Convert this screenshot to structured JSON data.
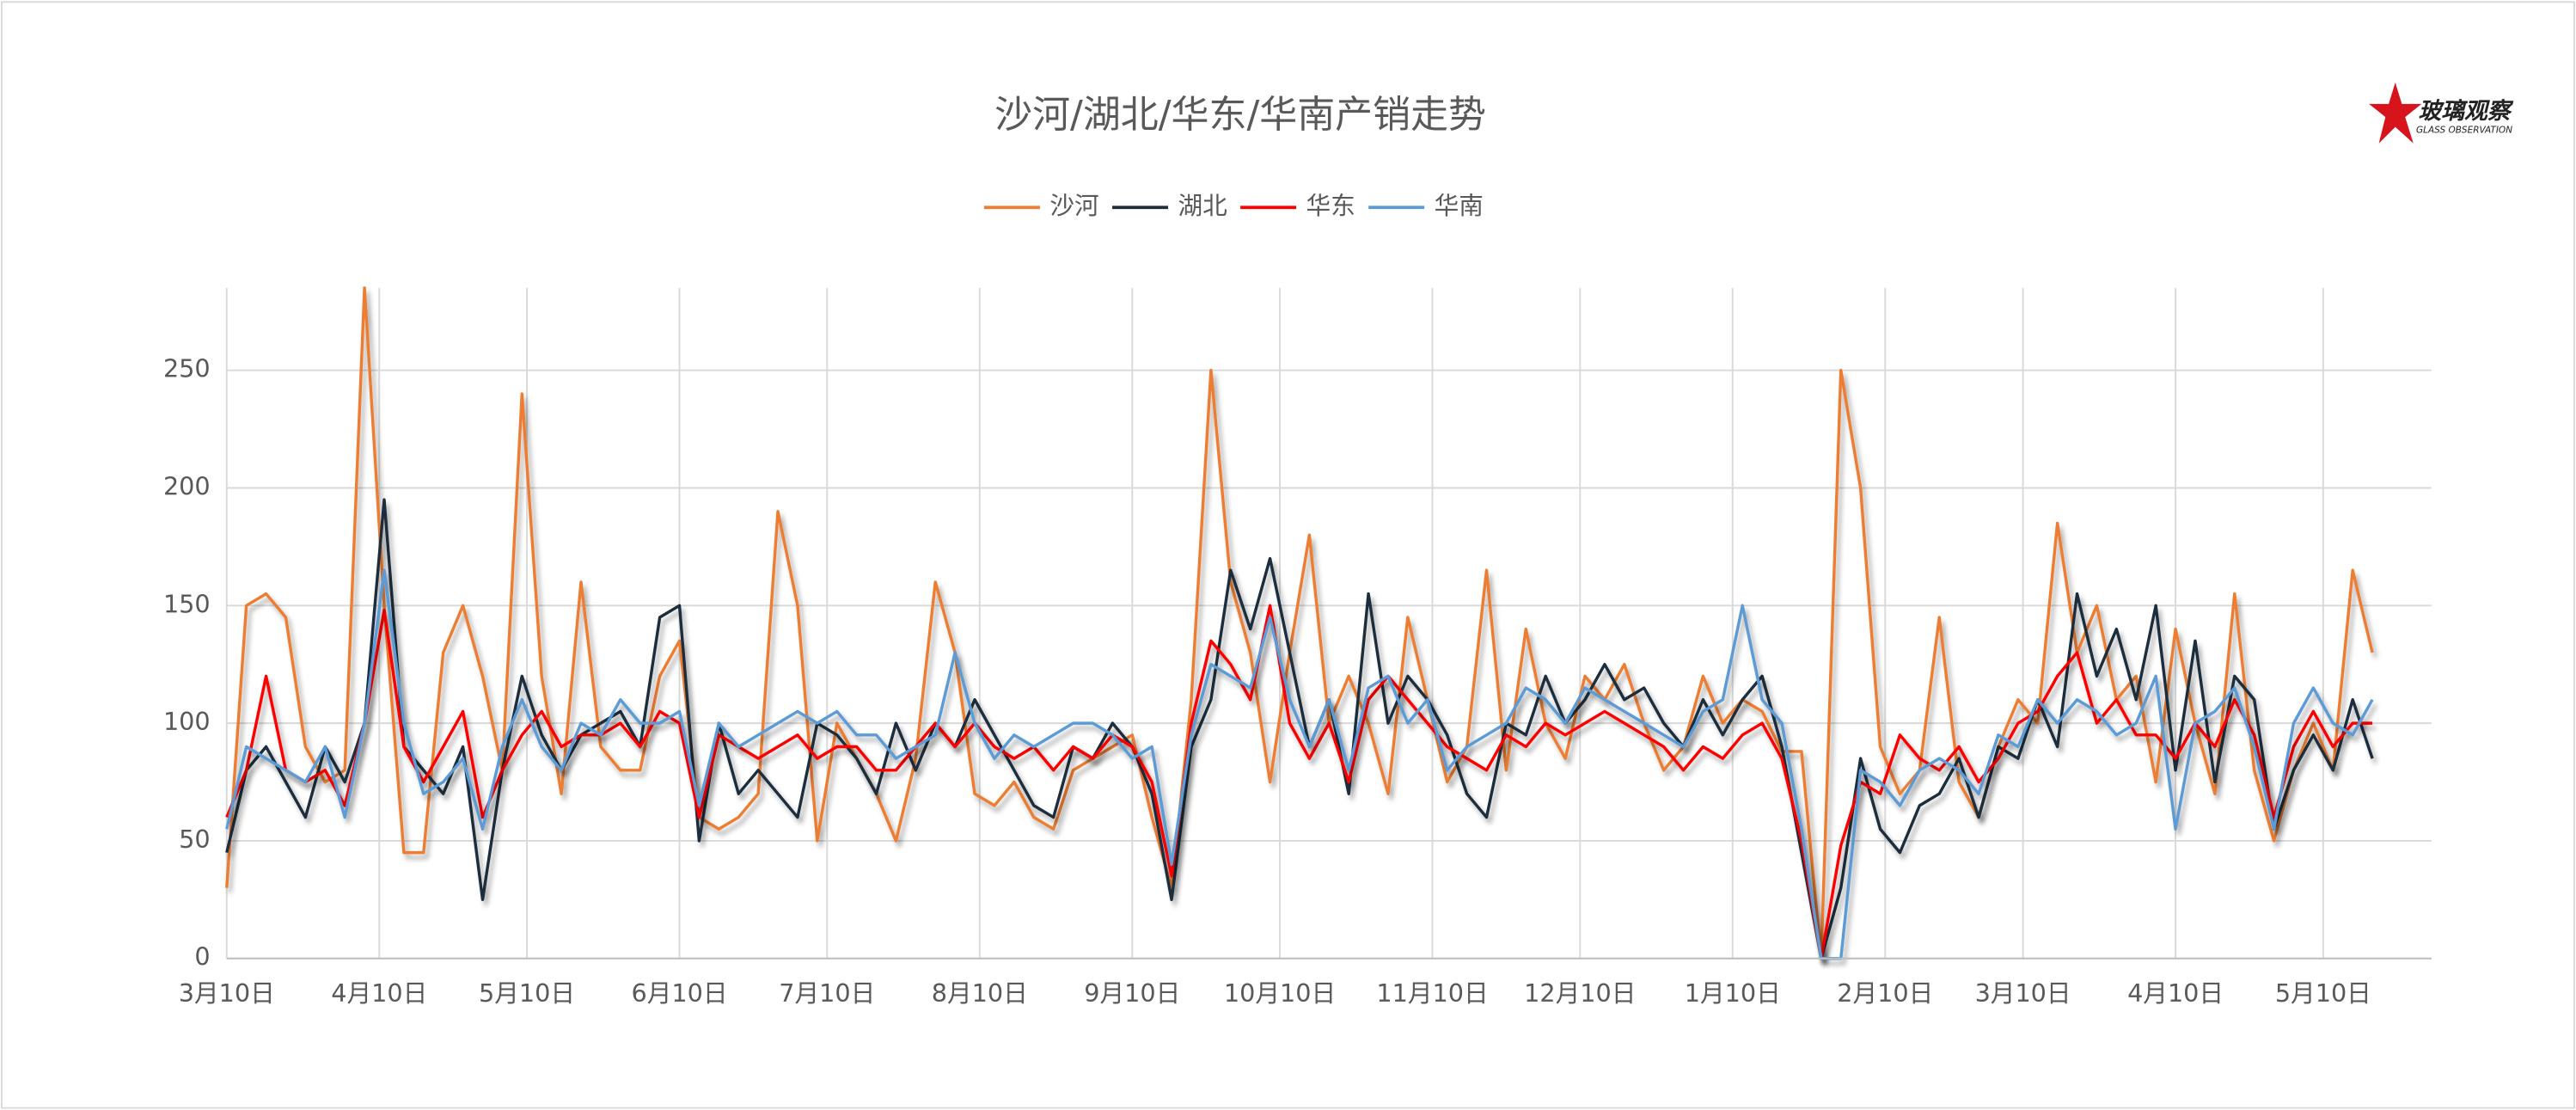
{
  "chart_data": {
    "type": "line",
    "title": "沙河/湖北/华东/华南产销走势",
    "x": [
      0,
      4,
      8,
      12,
      16,
      20,
      24,
      28,
      32,
      36,
      40,
      44,
      48,
      52,
      56,
      60,
      64,
      68,
      72,
      76,
      80,
      84,
      88,
      92,
      96,
      100,
      104,
      108,
      112,
      116,
      120,
      124,
      128,
      132,
      136,
      140,
      144,
      148,
      152,
      156,
      160,
      164,
      168,
      172,
      176,
      180,
      184,
      188,
      192,
      196,
      200,
      204,
      208,
      212,
      216,
      220,
      224,
      228,
      232,
      236,
      240,
      244,
      248,
      252,
      256,
      260,
      264,
      268,
      272,
      276,
      280,
      284,
      288,
      292,
      296,
      300,
      304,
      308,
      312,
      316,
      320,
      324,
      328,
      332,
      336,
      340,
      344,
      348,
      352,
      356,
      360,
      364,
      368,
      372,
      376,
      380,
      384,
      388,
      392,
      396,
      400,
      404,
      408,
      412,
      416,
      420,
      424,
      428,
      432,
      436
    ],
    "series": [
      {
        "name": "沙河",
        "color": "#ed7d31",
        "values": [
          30,
          150,
          155,
          145,
          90,
          75,
          80,
          285,
          150,
          45,
          45,
          130,
          150,
          120,
          80,
          240,
          120,
          70,
          160,
          90,
          80,
          80,
          120,
          135,
          60,
          55,
          60,
          70,
          190,
          150,
          50,
          100,
          85,
          70,
          50,
          85,
          160,
          130,
          70,
          65,
          75,
          60,
          55,
          80,
          85,
          90,
          95,
          60,
          30,
          110,
          250,
          160,
          130,
          75,
          130,
          180,
          100,
          120,
          100,
          70,
          145,
          110,
          75,
          90,
          165,
          80,
          140,
          100,
          85,
          120,
          110,
          125,
          100,
          80,
          90,
          120,
          100,
          110,
          105,
          88,
          88,
          0,
          250,
          200,
          90,
          70,
          80,
          145,
          75,
          60,
          90,
          110,
          100,
          185,
          130,
          150,
          110,
          120,
          75,
          140,
          100,
          70,
          155,
          80,
          50,
          80,
          100,
          80,
          165,
          130
        ]
      },
      {
        "name": "湖北",
        "color": "#1f2d3d",
        "values": [
          45,
          80,
          90,
          75,
          60,
          90,
          75,
          100,
          195,
          90,
          80,
          70,
          90,
          25,
          80,
          120,
          95,
          80,
          95,
          100,
          105,
          90,
          145,
          150,
          50,
          100,
          70,
          80,
          70,
          60,
          100,
          95,
          85,
          70,
          100,
          80,
          100,
          90,
          110,
          95,
          80,
          65,
          60,
          90,
          85,
          100,
          90,
          70,
          25,
          90,
          110,
          165,
          140,
          170,
          130,
          90,
          110,
          70,
          155,
          100,
          120,
          110,
          95,
          70,
          60,
          100,
          95,
          120,
          100,
          110,
          125,
          110,
          115,
          100,
          90,
          110,
          95,
          110,
          120,
          90,
          45,
          0,
          30,
          85,
          55,
          45,
          65,
          70,
          85,
          60,
          90,
          85,
          110,
          90,
          155,
          120,
          140,
          110,
          150,
          80,
          135,
          75,
          120,
          110,
          55,
          80,
          95,
          80,
          110,
          85
        ]
      },
      {
        "name": "华东",
        "color": "#ff0000",
        "values": [
          60,
          80,
          120,
          80,
          75,
          80,
          65,
          100,
          148,
          90,
          75,
          90,
          105,
          60,
          80,
          95,
          105,
          90,
          95,
          95,
          100,
          90,
          105,
          100,
          60,
          95,
          90,
          85,
          90,
          95,
          85,
          90,
          90,
          80,
          80,
          90,
          100,
          90,
          100,
          90,
          85,
          90,
          80,
          90,
          85,
          95,
          90,
          75,
          35,
          100,
          135,
          125,
          110,
          150,
          100,
          85,
          100,
          75,
          110,
          120,
          110,
          100,
          90,
          85,
          80,
          95,
          90,
          100,
          95,
          100,
          105,
          100,
          95,
          90,
          80,
          90,
          85,
          95,
          100,
          85,
          50,
          0,
          48,
          75,
          70,
          95,
          85,
          80,
          90,
          75,
          85,
          100,
          105,
          120,
          130,
          100,
          110,
          95,
          95,
          85,
          100,
          90,
          110,
          95,
          60,
          90,
          105,
          90,
          100,
          100
        ]
      },
      {
        "name": "华南",
        "color": "#5b9bd5",
        "values": [
          55,
          90,
          85,
          80,
          75,
          90,
          60,
          100,
          165,
          100,
          70,
          75,
          85,
          55,
          90,
          110,
          90,
          80,
          100,
          95,
          110,
          100,
          100,
          105,
          65,
          100,
          90,
          95,
          100,
          105,
          100,
          105,
          95,
          95,
          85,
          90,
          95,
          130,
          100,
          85,
          95,
          90,
          95,
          100,
          100,
          95,
          85,
          90,
          40,
          95,
          125,
          120,
          115,
          145,
          110,
          90,
          110,
          80,
          115,
          120,
          100,
          110,
          80,
          90,
          95,
          100,
          115,
          110,
          100,
          115,
          110,
          105,
          100,
          95,
          90,
          105,
          110,
          150,
          110,
          100,
          55,
          0,
          0,
          80,
          75,
          65,
          80,
          85,
          80,
          70,
          95,
          90,
          110,
          100,
          110,
          105,
          95,
          100,
          120,
          55,
          100,
          105,
          115,
          90,
          55,
          100,
          115,
          100,
          95,
          110
        ]
      }
    ],
    "xlim": [
      0,
      448
    ],
    "xticks": [
      {
        "value": 0,
        "label": "3月10日"
      },
      {
        "value": 31,
        "label": "4月10日"
      },
      {
        "value": 61,
        "label": "5月10日"
      },
      {
        "value": 92,
        "label": "6月10日"
      },
      {
        "value": 122,
        "label": "7月10日"
      },
      {
        "value": 153,
        "label": "8月10日"
      },
      {
        "value": 184,
        "label": "9月10日"
      },
      {
        "value": 214,
        "label": "10月10日"
      },
      {
        "value": 245,
        "label": "11月10日"
      },
      {
        "value": 275,
        "label": "12月10日"
      },
      {
        "value": 306,
        "label": "1月10日"
      },
      {
        "value": 337,
        "label": "2月10日"
      },
      {
        "value": 365,
        "label": "3月10日"
      },
      {
        "value": 396,
        "label": "4月10日"
      },
      {
        "value": 426,
        "label": "5月10日"
      }
    ],
    "ylim": [
      0,
      285
    ],
    "yticks": [
      0,
      50,
      100,
      150,
      200,
      250
    ],
    "grid": true,
    "legend": "top"
  },
  "logo": {
    "text": "玻璃观察",
    "subtext": "GLASS OBSERVATION"
  }
}
